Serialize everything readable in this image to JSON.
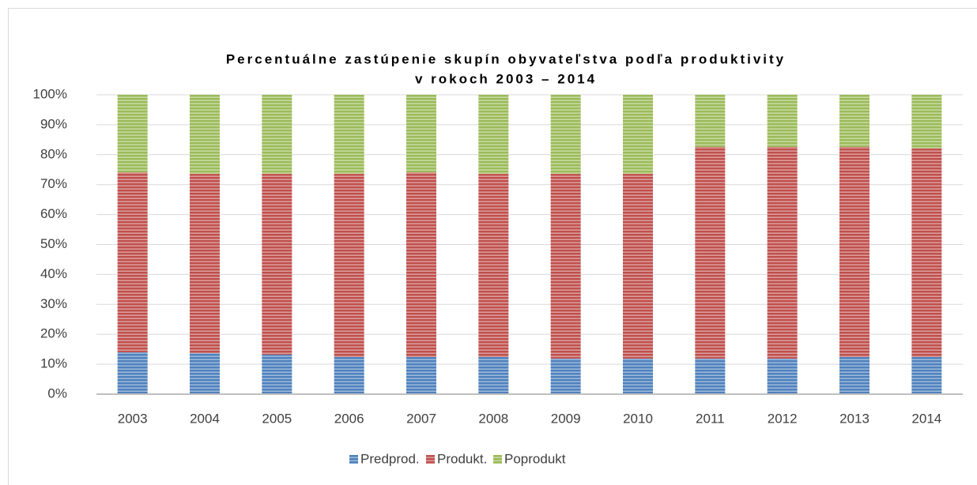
{
  "chart_data": {
    "type": "bar",
    "stacked": true,
    "title": [
      "Percentuálne zastúpenie skupín obyvateľstva podľa produktivity",
      "v rokoch 2003 – 2014"
    ],
    "categories": [
      "2003",
      "2004",
      "2005",
      "2006",
      "2007",
      "2008",
      "2009",
      "2010",
      "2011",
      "2012",
      "2013",
      "2014"
    ],
    "series": [
      {
        "name": "Predprod.",
        "color": "#4f81bd",
        "values": [
          14.0,
          13.7,
          13.2,
          12.4,
          12.4,
          12.4,
          11.9,
          11.9,
          11.9,
          11.9,
          12.4,
          12.4
        ]
      },
      {
        "name": "Produkt.",
        "color": "#c0504d",
        "values": [
          60.1,
          59.9,
          60.4,
          61.2,
          61.7,
          61.2,
          61.7,
          61.7,
          70.7,
          70.7,
          70.2,
          69.7
        ]
      },
      {
        "name": "Poprodukt",
        "color": "#9bbb59",
        "values": [
          25.9,
          26.4,
          26.4,
          26.4,
          25.9,
          26.4,
          26.4,
          26.4,
          17.4,
          17.4,
          17.4,
          17.9
        ]
      }
    ],
    "ylim": [
      0,
      100
    ],
    "yticks": [
      {
        "value": 0,
        "label": "0%"
      },
      {
        "value": 10,
        "label": "10%"
      },
      {
        "value": 20,
        "label": "20%"
      },
      {
        "value": 30,
        "label": "30%"
      },
      {
        "value": 40,
        "label": "40%"
      },
      {
        "value": 50,
        "label": "50%"
      },
      {
        "value": 60,
        "label": "60%"
      },
      {
        "value": 70,
        "label": "70%"
      },
      {
        "value": 80,
        "label": "80%"
      },
      {
        "value": 90,
        "label": "90%"
      },
      {
        "value": 100,
        "label": "100%"
      }
    ],
    "grid": true,
    "legend": "bottom"
  }
}
